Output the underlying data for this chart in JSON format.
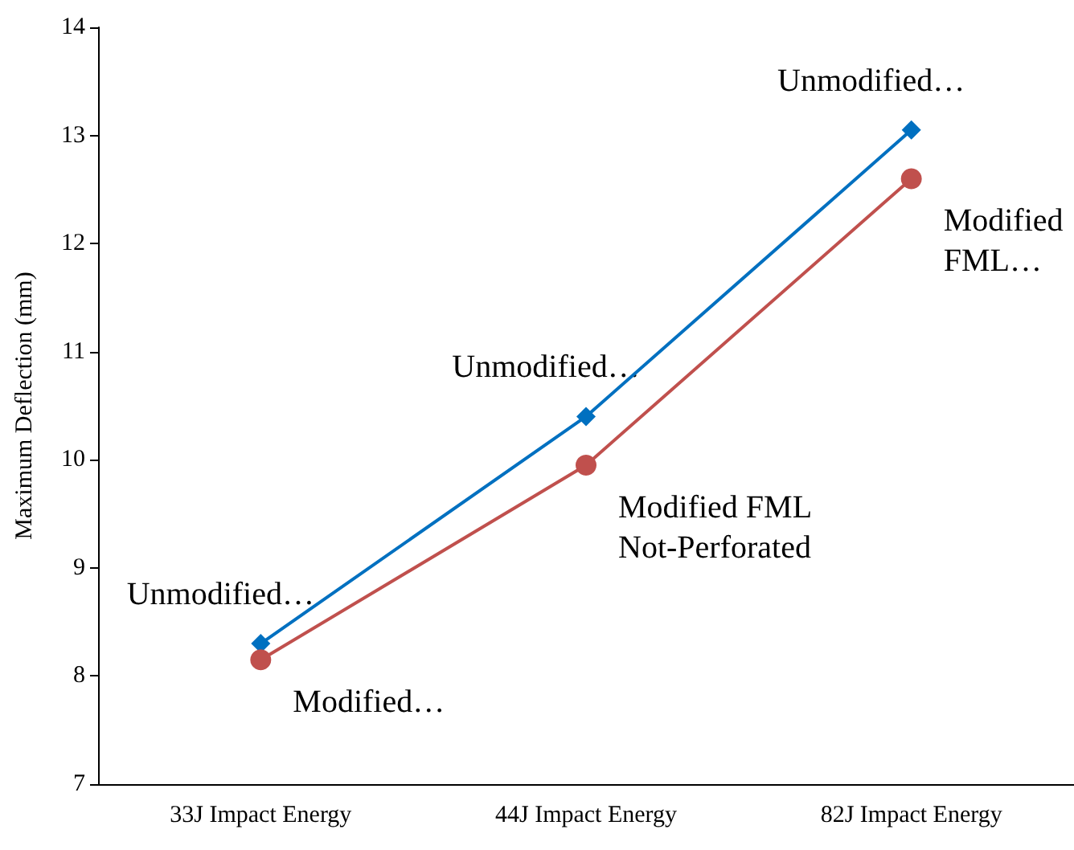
{
  "chart_data": {
    "type": "line",
    "ylabel": "Maximum Deflection (mm)",
    "categories": [
      "33J Impact Energy",
      "44J Impact Energy",
      "82J Impact Energy"
    ],
    "series": [
      {
        "color": "#0070c0",
        "marker": "diamond",
        "values": [
          8.3,
          10.4,
          13.05
        ]
      },
      {
        "color": "#c0504d",
        "marker": "circle",
        "values": [
          8.15,
          9.95,
          12.6
        ]
      }
    ],
    "ylim": [
      7,
      14
    ],
    "yticks": [
      7,
      8,
      9,
      10,
      11,
      12,
      13,
      14
    ],
    "grid": false,
    "annotations": [
      {
        "text": "Unmodified…",
        "x": "33J Impact Energy",
        "y": 8.3
      },
      {
        "text": "Modified…",
        "x": "33J Impact Energy",
        "y": 8.15
      },
      {
        "text": "Unmodified…",
        "x": "44J Impact Energy",
        "y": 10.4
      },
      {
        "text": "Modified FML\nNot-Perforated",
        "x": "44J Impact Energy",
        "y": 9.95
      },
      {
        "text": "Unmodified…",
        "x": "82J Impact Energy",
        "y": 13.05
      },
      {
        "text": "Modified\nFML…",
        "x": "82J Impact Energy",
        "y": 12.6
      }
    ]
  }
}
